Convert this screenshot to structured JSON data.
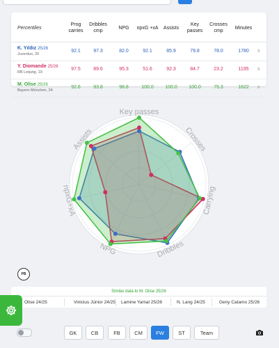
{
  "table": {
    "headers": [
      "Percentiles",
      "Prog carries",
      "Dribbles cmp",
      "NPG",
      "npxG +xA",
      "Assists",
      "Key passes",
      "Crosses cmp",
      "Minutes"
    ],
    "rows": [
      {
        "name": "K. Yıldız",
        "season": "25/26",
        "club": "Juventus, 20",
        "color": "#2b5fb8",
        "values": [
          "92.1",
          "97.3",
          "82.0",
          "92.1",
          "85.9",
          "79.8",
          "78.0",
          "1780"
        ],
        "remove": "x"
      },
      {
        "name": "Y. Diomande",
        "season": "25/26",
        "club": "RB Leipzig, 19",
        "color": "#d12d63",
        "values": [
          "97.5",
          "89.6",
          "95.3",
          "51.6",
          "92.3",
          "84.7",
          "23.2",
          "1195"
        ],
        "remove": "x"
      },
      {
        "name": "M. Olise",
        "season": "25/26",
        "club": "Bayern München, 24",
        "color": "#3aa53a",
        "values": [
          "92.6",
          "93.8",
          "98.8",
          "100.0",
          "100.0",
          "100.0",
          "75.3",
          "1622"
        ],
        "remove": "x"
      }
    ]
  },
  "chart_data": {
    "type": "radar",
    "axes": [
      "Key passes",
      "Crosses",
      "Carrying",
      "Dribbles",
      "NPG",
      "npxG+xA",
      "Assists"
    ],
    "range": [
      0,
      100
    ],
    "series": [
      {
        "name": "K. Yıldız 25/26",
        "color": "#3a6fc8",
        "values": [
          80,
          78,
          92,
          97,
          82,
          92,
          86
        ]
      },
      {
        "name": "Y. Diomande 25/26",
        "color": "#d12d63",
        "values": [
          85,
          23,
          98,
          90,
          95,
          52,
          92
        ]
      },
      {
        "name": "M. Olise 25/26",
        "color": "#47c147",
        "values": [
          100,
          75,
          93,
          94,
          99,
          100,
          100
        ]
      }
    ]
  },
  "logo_text": "PB",
  "similar": {
    "title": "Similar data to M. Olise 25/26",
    "players": [
      "Olise 24/25",
      "Vinicius Júnior 24/25",
      "Lamine Yamal 25/26",
      "N. Lang 24/25",
      "Geny Catamo 25/26"
    ]
  },
  "positions": {
    "buttons": [
      "GK",
      "CB",
      "FB",
      "CM",
      "FW",
      "ST",
      "Team"
    ],
    "active": "FW"
  },
  "icons": {
    "settings": "gear-icon",
    "camera": "camera-icon",
    "toggle": "toggle-switch"
  },
  "colors": {
    "accent": "#2a7fe0",
    "settings_bg": "#3bb83b"
  }
}
